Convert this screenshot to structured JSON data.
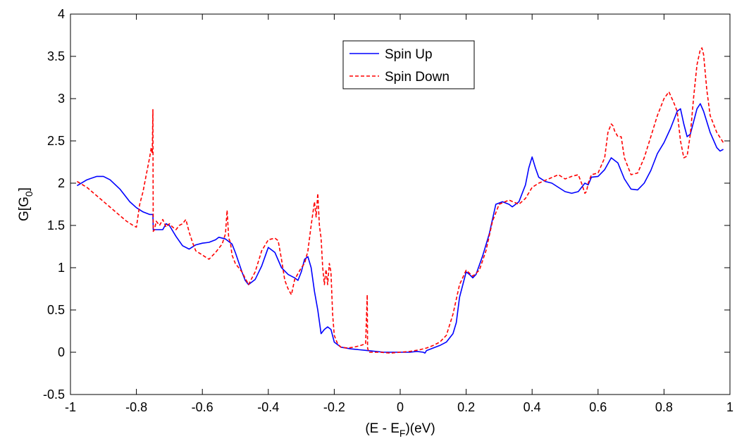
{
  "chart_data": {
    "type": "line",
    "title": "",
    "xlabel_parts": [
      "(E - E",
      "F",
      ")(eV)"
    ],
    "ylabel_parts": [
      "G[G",
      "0",
      "]"
    ],
    "xlim": [
      -1,
      1
    ],
    "ylim": [
      -0.5,
      4
    ],
    "xticks": [
      "-1",
      "-0.8",
      "-0.6",
      "-0.4",
      "-0.2",
      "0",
      "0.2",
      "0.4",
      "0.6",
      "0.8",
      "1"
    ],
    "yticks": [
      "-0.5",
      "0",
      "0.5",
      "1",
      "1.5",
      "2",
      "2.5",
      "3",
      "3.5",
      "4"
    ],
    "grid": false,
    "legend_position": "top-center",
    "series": [
      {
        "name": "Spin Up",
        "color": "#0000ff",
        "style": "solid",
        "x": [
          -0.98,
          -0.95,
          -0.92,
          -0.9,
          -0.88,
          -0.85,
          -0.82,
          -0.8,
          -0.78,
          -0.76,
          -0.75,
          -0.749,
          -0.74,
          -0.72,
          -0.71,
          -0.7,
          -0.68,
          -0.66,
          -0.64,
          -0.62,
          -0.6,
          -0.58,
          -0.56,
          -0.55,
          -0.53,
          -0.51,
          -0.5,
          -0.48,
          -0.47,
          -0.46,
          -0.44,
          -0.42,
          -0.4,
          -0.38,
          -0.36,
          -0.34,
          -0.32,
          -0.31,
          -0.3,
          -0.29,
          -0.28,
          -0.27,
          -0.26,
          -0.25,
          -0.24,
          -0.23,
          -0.22,
          -0.21,
          -0.2,
          -0.18,
          -0.15,
          -0.1,
          -0.05,
          0,
          0.03,
          0.05,
          0.07,
          0.075,
          0.08,
          0.1,
          0.12,
          0.14,
          0.16,
          0.17,
          0.18,
          0.2,
          0.21,
          0.22,
          0.23,
          0.25,
          0.27,
          0.29,
          0.31,
          0.33,
          0.34,
          0.36,
          0.38,
          0.39,
          0.4,
          0.41,
          0.42,
          0.44,
          0.46,
          0.48,
          0.5,
          0.52,
          0.54,
          0.56,
          0.57,
          0.58,
          0.6,
          0.62,
          0.64,
          0.66,
          0.68,
          0.7,
          0.72,
          0.74,
          0.76,
          0.78,
          0.8,
          0.82,
          0.84,
          0.85,
          0.86,
          0.87,
          0.88,
          0.9,
          0.91,
          0.92,
          0.94,
          0.96,
          0.97,
          0.98
        ],
        "y": [
          1.97,
          2.04,
          2.08,
          2.08,
          2.04,
          1.93,
          1.78,
          1.71,
          1.66,
          1.63,
          1.63,
          1.45,
          1.45,
          1.45,
          1.52,
          1.5,
          1.37,
          1.26,
          1.22,
          1.27,
          1.29,
          1.3,
          1.33,
          1.36,
          1.34,
          1.28,
          1.18,
          0.95,
          0.85,
          0.8,
          0.86,
          1.02,
          1.24,
          1.18,
          1.0,
          0.92,
          0.88,
          0.85,
          0.95,
          1.1,
          1.13,
          1.0,
          0.72,
          0.5,
          0.22,
          0.27,
          0.3,
          0.27,
          0.12,
          0.06,
          0.04,
          0.02,
          0.0,
          0.0,
          0.0,
          0.01,
          0.0,
          -0.01,
          0.02,
          0.05,
          0.08,
          0.12,
          0.22,
          0.35,
          0.65,
          0.95,
          0.92,
          0.88,
          0.92,
          1.14,
          1.4,
          1.75,
          1.78,
          1.75,
          1.72,
          1.78,
          1.98,
          2.18,
          2.31,
          2.18,
          2.07,
          2.02,
          2.0,
          1.95,
          1.9,
          1.88,
          1.9,
          2.0,
          1.98,
          2.07,
          2.08,
          2.16,
          2.3,
          2.24,
          2.05,
          1.93,
          1.92,
          2.0,
          2.15,
          2.35,
          2.48,
          2.65,
          2.85,
          2.88,
          2.7,
          2.55,
          2.58,
          2.88,
          2.94,
          2.85,
          2.6,
          2.42,
          2.38,
          2.4
        ]
      },
      {
        "name": "Spin Down",
        "color": "#ff0000",
        "style": "dashed",
        "x": [
          -0.98,
          -0.95,
          -0.92,
          -0.89,
          -0.86,
          -0.83,
          -0.81,
          -0.8,
          -0.79,
          -0.78,
          -0.77,
          -0.76,
          -0.755,
          -0.752,
          -0.75,
          -0.749,
          -0.745,
          -0.74,
          -0.73,
          -0.72,
          -0.71,
          -0.7,
          -0.69,
          -0.68,
          -0.67,
          -0.66,
          -0.65,
          -0.64,
          -0.63,
          -0.62,
          -0.6,
          -0.58,
          -0.56,
          -0.54,
          -0.53,
          -0.525,
          -0.52,
          -0.515,
          -0.51,
          -0.5,
          -0.48,
          -0.46,
          -0.44,
          -0.42,
          -0.4,
          -0.38,
          -0.37,
          -0.36,
          -0.35,
          -0.34,
          -0.33,
          -0.32,
          -0.31,
          -0.3,
          -0.29,
          -0.28,
          -0.27,
          -0.26,
          -0.255,
          -0.25,
          -0.245,
          -0.24,
          -0.235,
          -0.23,
          -0.225,
          -0.22,
          -0.215,
          -0.21,
          -0.205,
          -0.2,
          -0.19,
          -0.18,
          -0.16,
          -0.14,
          -0.12,
          -0.105,
          -0.1,
          -0.099,
          -0.095,
          -0.09,
          -0.06,
          -0.03,
          0,
          0.03,
          0.06,
          0.08,
          0.1,
          0.12,
          0.14,
          0.16,
          0.18,
          0.2,
          0.22,
          0.24,
          0.26,
          0.28,
          0.3,
          0.33,
          0.36,
          0.38,
          0.4,
          0.42,
          0.45,
          0.48,
          0.5,
          0.52,
          0.54,
          0.55,
          0.56,
          0.565,
          0.57,
          0.58,
          0.6,
          0.62,
          0.63,
          0.64,
          0.645,
          0.65,
          0.66,
          0.67,
          0.68,
          0.7,
          0.72,
          0.74,
          0.76,
          0.78,
          0.8,
          0.815,
          0.83,
          0.84,
          0.85,
          0.86,
          0.87,
          0.88,
          0.89,
          0.9,
          0.91,
          0.915,
          0.92,
          0.93,
          0.94,
          0.96,
          0.98
        ],
        "y": [
          2.02,
          1.95,
          1.85,
          1.75,
          1.65,
          1.55,
          1.5,
          1.48,
          1.75,
          1.9,
          2.1,
          2.3,
          2.42,
          2.35,
          2.87,
          1.43,
          1.45,
          1.55,
          1.5,
          1.57,
          1.48,
          1.52,
          1.48,
          1.45,
          1.5,
          1.52,
          1.57,
          1.42,
          1.3,
          1.2,
          1.15,
          1.1,
          1.18,
          1.28,
          1.4,
          1.68,
          1.35,
          1.3,
          1.15,
          1.05,
          0.95,
          0.8,
          0.95,
          1.2,
          1.33,
          1.35,
          1.32,
          1.1,
          0.85,
          0.75,
          0.68,
          0.86,
          0.93,
          1.0,
          1.05,
          1.2,
          1.5,
          1.78,
          1.6,
          1.88,
          1.5,
          1.35,
          1.0,
          0.8,
          0.98,
          0.8,
          1.05,
          0.95,
          0.45,
          0.2,
          0.1,
          0.06,
          0.05,
          0.06,
          0.08,
          0.1,
          0.68,
          0.05,
          0.0,
          0.0,
          0.0,
          -0.01,
          0.0,
          0.01,
          0.03,
          0.05,
          0.08,
          0.12,
          0.2,
          0.45,
          0.8,
          0.97,
          0.9,
          0.97,
          1.2,
          1.55,
          1.75,
          1.8,
          1.75,
          1.82,
          1.95,
          2.0,
          2.05,
          2.1,
          2.05,
          2.08,
          2.1,
          2.0,
          1.88,
          1.9,
          2.0,
          2.1,
          2.12,
          2.3,
          2.6,
          2.7,
          2.68,
          2.62,
          2.55,
          2.55,
          2.3,
          2.1,
          2.12,
          2.3,
          2.55,
          2.8,
          3.0,
          3.08,
          2.95,
          2.85,
          2.5,
          2.3,
          2.32,
          2.58,
          3.02,
          3.4,
          3.58,
          3.6,
          3.52,
          3.1,
          2.8,
          2.6,
          2.48
        ]
      }
    ]
  }
}
